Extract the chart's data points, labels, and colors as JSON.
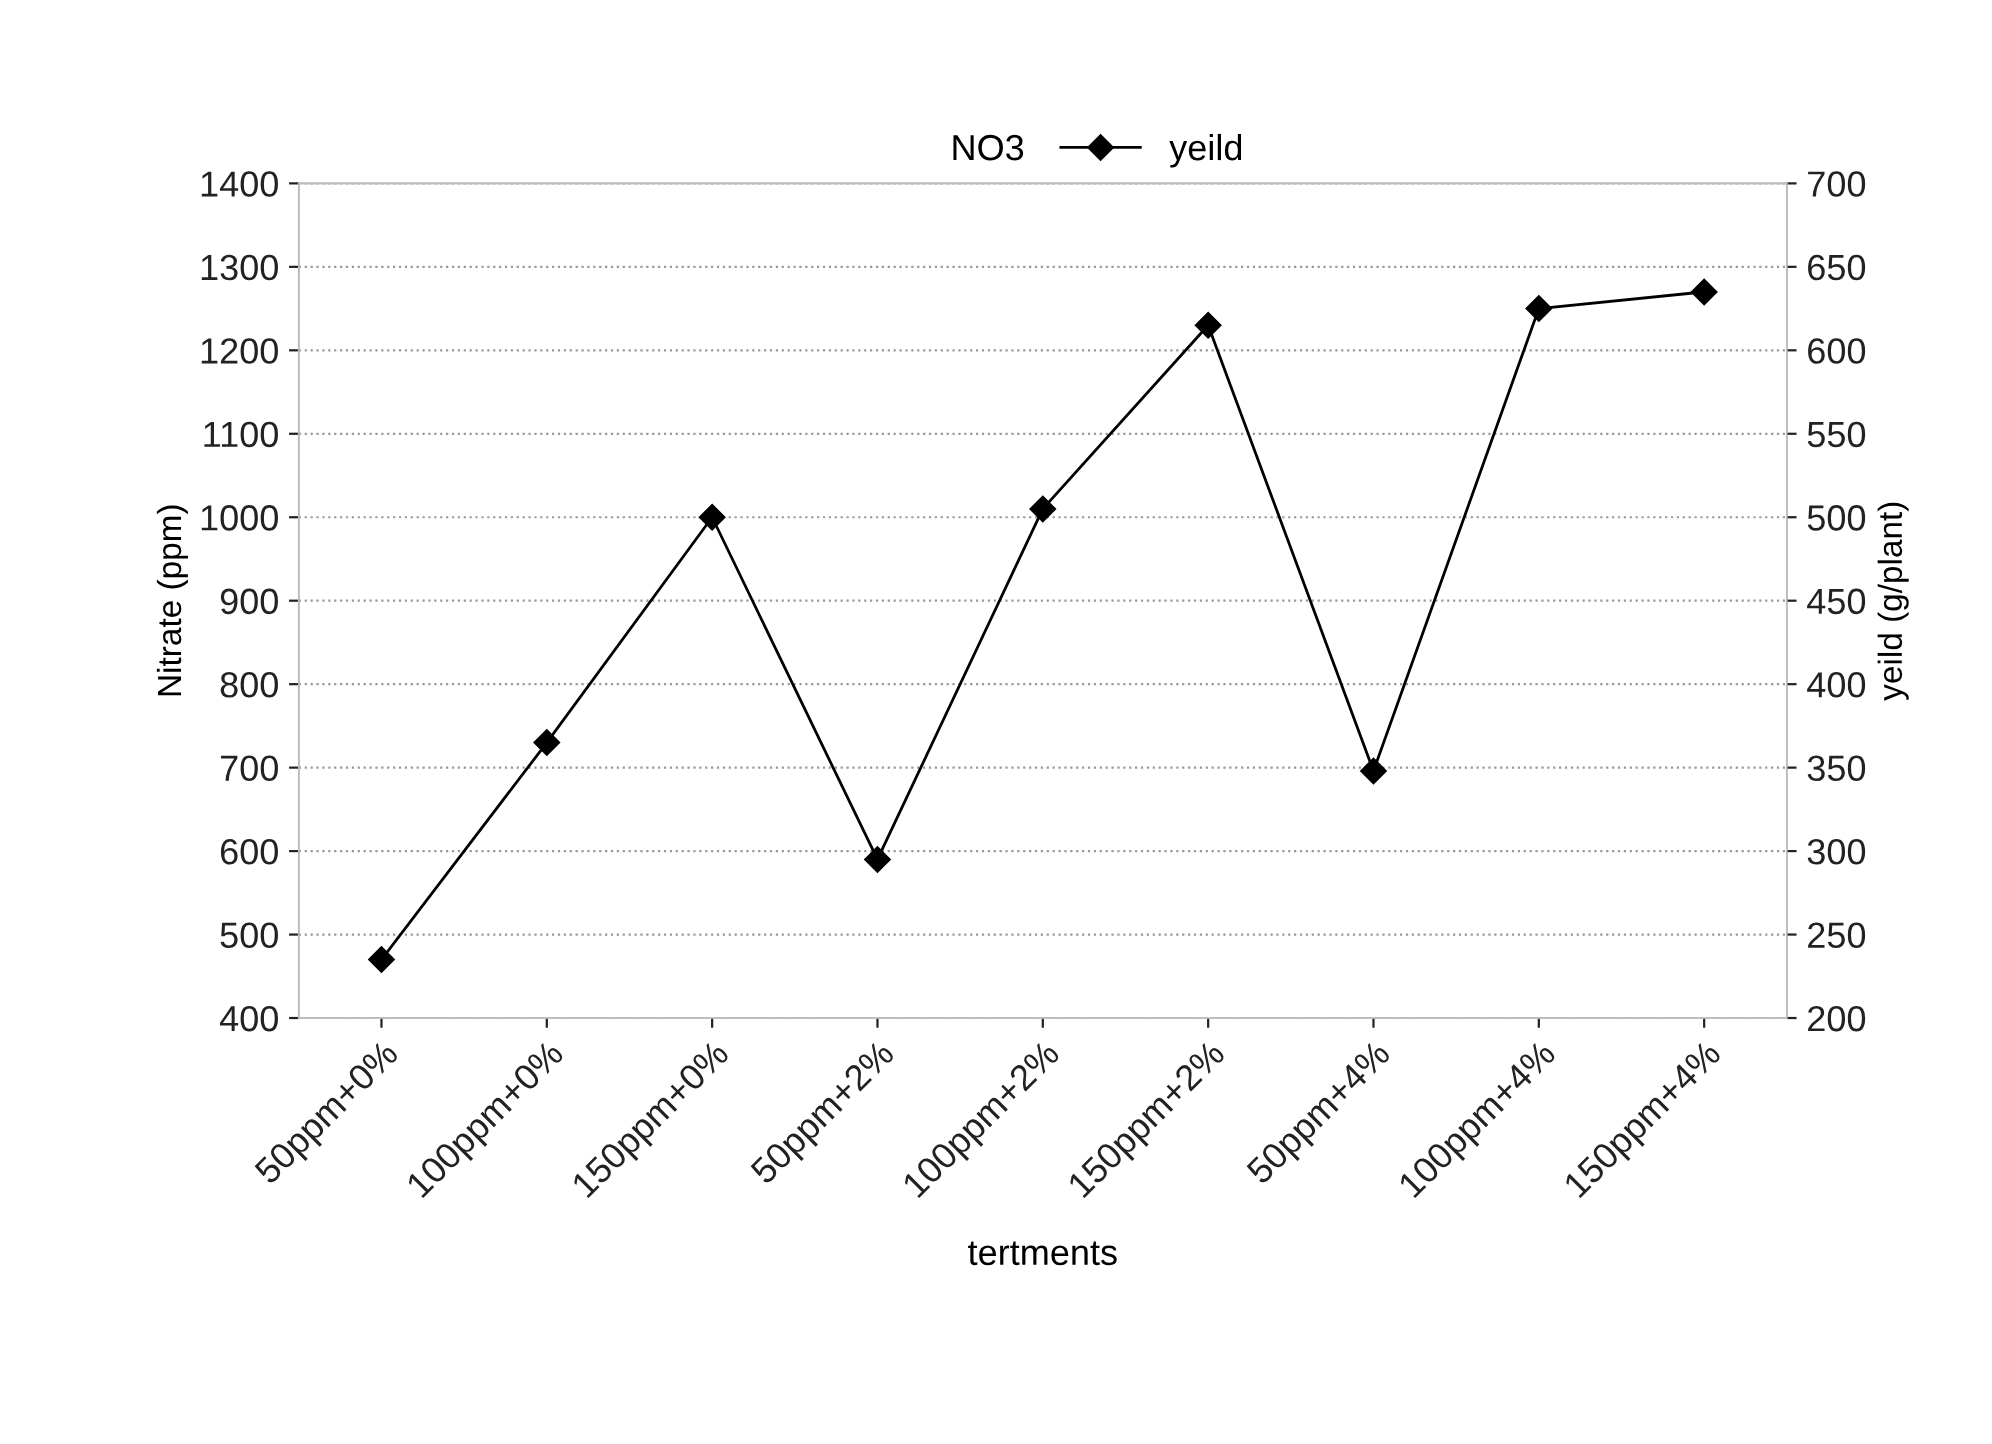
{
  "chart_data": {
    "type": "line",
    "categories": [
      "50ppm+0%",
      "100ppm+0%",
      "150ppm+0%",
      "50ppm+2%",
      "100ppm+2%",
      "150ppm+2%",
      "50ppm+4%",
      "100ppm+4%",
      "150ppm+4%"
    ],
    "series": [
      {
        "name": "NO3",
        "values": [
          null,
          null,
          null,
          null,
          null,
          null,
          null,
          null,
          null
        ]
      },
      {
        "name": "yeild",
        "axis": "y2",
        "color": "#000000",
        "marker": "diamond",
        "values": [
          235,
          365,
          500,
          295,
          505,
          615,
          348,
          625,
          635
        ]
      }
    ],
    "xlabel": "tertments",
    "ylabel": "Nitrate (ppm)",
    "y2label": "yeild (g/plant)",
    "ylim": [
      400,
      1400
    ],
    "yticks": [
      400,
      500,
      600,
      700,
      800,
      900,
      1000,
      1100,
      1200,
      1300,
      1400
    ],
    "y2lim": [
      200,
      700
    ],
    "y2ticks": [
      200,
      250,
      300,
      350,
      400,
      450,
      500,
      550,
      600,
      650,
      700
    ],
    "grid": "y",
    "legend": "top"
  }
}
